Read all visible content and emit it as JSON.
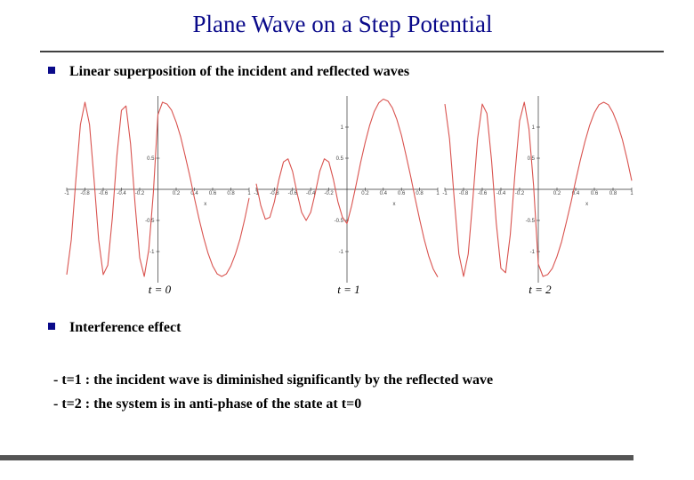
{
  "title": "Plane Wave on a Step Potential",
  "bullets": [
    "Linear superposition of the incident and reflected waves",
    "Interference effect"
  ],
  "notes": [
    "- t=1 : the incident wave is diminished significantly by the reflected wave",
    "- t=2 : the system is in anti-phase of the state at t=0"
  ],
  "chart_data": [
    {
      "type": "line",
      "caption": "t = 0",
      "x_label": "x",
      "color": "#d9534f",
      "xlim": [
        -1,
        1
      ],
      "ylim": [
        -1.5,
        1.5
      ],
      "xticks": [
        -1,
        -0.8,
        -0.6,
        -0.4,
        -0.2,
        0.2,
        0.4,
        0.6,
        0.8,
        1
      ],
      "yticks": [
        -1,
        -0.5,
        0.5
      ],
      "x": [
        -1,
        -0.95,
        -0.9,
        -0.85,
        -0.8,
        -0.75,
        -0.7,
        -0.65,
        -0.6,
        -0.55,
        -0.5,
        -0.45,
        -0.4,
        -0.35,
        -0.3,
        -0.25,
        -0.2,
        -0.15,
        -0.1,
        -0.05,
        0,
        0.05,
        0.1,
        0.15,
        0.2,
        0.25,
        0.3,
        0.35,
        0.4,
        0.45,
        0.5,
        0.55,
        0.6,
        0.65,
        0.7,
        0.75,
        0.8,
        0.85,
        0.9,
        0.95,
        1
      ],
      "values": [
        -1.37,
        -0.81,
        0.15,
        1.04,
        1.4,
        1.04,
        0.15,
        -0.81,
        -1.37,
        -1.22,
        -0.46,
        0.54,
        1.27,
        1.34,
        0.73,
        -0.25,
        -1.1,
        -1.4,
        -0.97,
        -0.05,
        1.2,
        1.4,
        1.37,
        1.27,
        1.08,
        0.84,
        0.53,
        0.21,
        -0.14,
        -0.47,
        -0.77,
        -1.03,
        -1.23,
        -1.36,
        -1.4,
        -1.36,
        -1.23,
        -1.04,
        -0.8,
        -0.49,
        -0.14
      ]
    },
    {
      "type": "line",
      "caption": "t = 1",
      "x_label": "x",
      "color": "#d9534f",
      "xlim": [
        -1,
        1
      ],
      "ylim": [
        -1.5,
        1.5
      ],
      "xticks": [
        -1,
        -0.8,
        -0.6,
        -0.4,
        -0.2,
        0.2,
        0.4,
        0.6,
        0.8,
        1
      ],
      "yticks": [
        -1,
        -0.5,
        0.5,
        1
      ],
      "x": [
        -1,
        -0.95,
        -0.9,
        -0.85,
        -0.8,
        -0.75,
        -0.7,
        -0.65,
        -0.6,
        -0.55,
        -0.5,
        -0.45,
        -0.4,
        -0.35,
        -0.3,
        -0.25,
        -0.2,
        -0.15,
        -0.1,
        -0.05,
        0,
        0.05,
        0.1,
        0.15,
        0.2,
        0.25,
        0.3,
        0.35,
        0.4,
        0.45,
        0.5,
        0.55,
        0.6,
        0.65,
        0.7,
        0.75,
        0.8,
        0.85,
        0.9,
        0.95,
        1
      ],
      "values": [
        0.09,
        -0.26,
        -0.48,
        -0.45,
        -0.2,
        0.16,
        0.44,
        0.49,
        0.29,
        -0.06,
        -0.37,
        -0.5,
        -0.37,
        -0.06,
        0.29,
        0.49,
        0.44,
        0.16,
        -0.2,
        -0.45,
        -0.55,
        -0.27,
        0.07,
        0.43,
        0.75,
        1.03,
        1.25,
        1.39,
        1.45,
        1.42,
        1.31,
        1.12,
        0.87,
        0.55,
        0.22,
        -0.14,
        -0.48,
        -0.8,
        -1.07,
        -1.28,
        -1.41
      ]
    },
    {
      "type": "line",
      "caption": "t = 2",
      "x_label": "x",
      "color": "#d9534f",
      "xlim": [
        -1,
        1
      ],
      "ylim": [
        -1.5,
        1.5
      ],
      "xticks": [
        -1,
        -0.8,
        -0.6,
        -0.4,
        -0.2,
        0.2,
        0.4,
        0.6,
        0.8,
        1
      ],
      "yticks": [
        -1,
        -0.5,
        0.5,
        1
      ],
      "x": [
        -1,
        -0.95,
        -0.9,
        -0.85,
        -0.8,
        -0.75,
        -0.7,
        -0.65,
        -0.6,
        -0.55,
        -0.5,
        -0.45,
        -0.4,
        -0.35,
        -0.3,
        -0.25,
        -0.2,
        -0.15,
        -0.1,
        -0.05,
        0,
        0.05,
        0.1,
        0.15,
        0.2,
        0.25,
        0.3,
        0.35,
        0.4,
        0.45,
        0.5,
        0.55,
        0.6,
        0.65,
        0.7,
        0.75,
        0.8,
        0.85,
        0.9,
        0.95,
        1
      ],
      "values": [
        1.37,
        0.81,
        -0.15,
        -1.04,
        -1.4,
        -1.04,
        -0.15,
        0.81,
        1.37,
        1.22,
        0.46,
        -0.54,
        -1.27,
        -1.34,
        -0.73,
        0.25,
        1.1,
        1.4,
        0.97,
        0.05,
        -1.2,
        -1.4,
        -1.37,
        -1.27,
        -1.08,
        -0.84,
        -0.53,
        -0.21,
        0.14,
        0.47,
        0.77,
        1.03,
        1.23,
        1.36,
        1.4,
        1.36,
        1.23,
        1.04,
        0.8,
        0.49,
        0.14
      ]
    }
  ]
}
